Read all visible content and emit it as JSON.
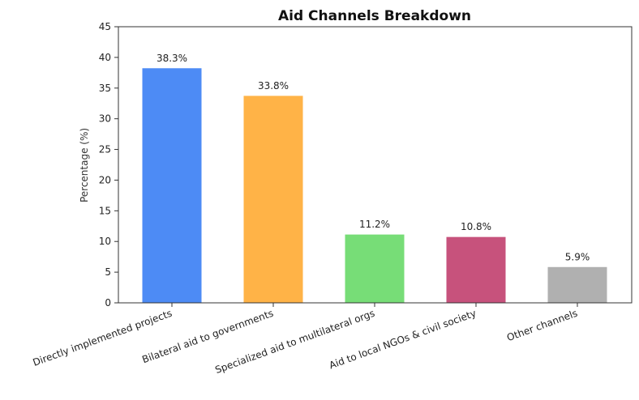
{
  "chart_data": {
    "type": "bar",
    "title": "Aid Channels Breakdown",
    "xlabel": "",
    "ylabel": "Percentage (%)",
    "ylim": [
      0,
      45
    ],
    "yticks": [
      0,
      5,
      10,
      15,
      20,
      25,
      30,
      35,
      40,
      45
    ],
    "categories": [
      "Directly implemented projects",
      "Bilateral aid to governments",
      "Specialized aid to multilateral orgs",
      "Aid to local NGOs & civil society",
      "Other channels"
    ],
    "values": [
      38.3,
      33.8,
      11.2,
      10.8,
      5.9
    ],
    "data_labels": [
      "38.3%",
      "33.8%",
      "11.2%",
      "10.8%",
      "5.9%"
    ],
    "colors": [
      "#4d8bf5",
      "#ffb347",
      "#77dd77",
      "#c7527c",
      "#b0b0b0"
    ],
    "grid": false,
    "legend": "none"
  }
}
